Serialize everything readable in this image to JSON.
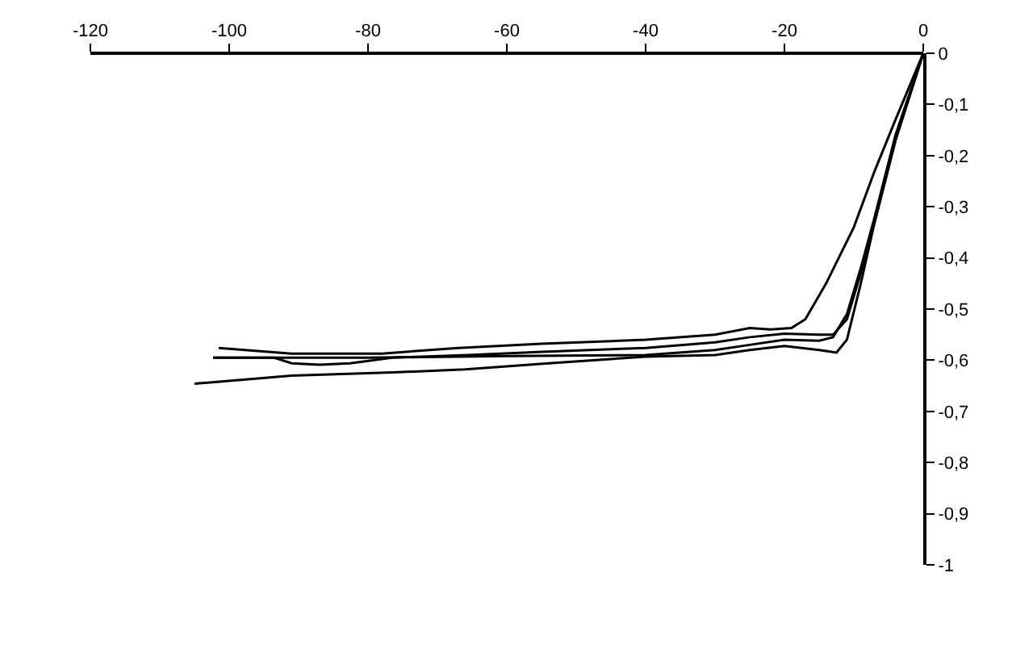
{
  "chart_data": {
    "type": "line",
    "xlim": [
      -120,
      0
    ],
    "ylim": [
      -1,
      0
    ],
    "xticks": [
      -120,
      -100,
      -80,
      -60,
      -40,
      -20,
      0
    ],
    "yticks": [
      0,
      {
        "value": -0.1,
        "label": "-0,1"
      },
      {
        "value": -0.2,
        "label": "-0,2"
      },
      {
        "value": -0.3,
        "label": "-0,3"
      },
      {
        "value": -0.4,
        "label": "-0,4"
      },
      {
        "value": -0.5,
        "label": "-0,5"
      },
      {
        "value": -0.6,
        "label": "-0,6"
      },
      {
        "value": -0.7,
        "label": "-0,7"
      },
      {
        "value": -0.8,
        "label": "-0,8"
      },
      {
        "value": -0.9,
        "label": "-0,9"
      },
      -1
    ],
    "marker": "none",
    "line_style": "solid",
    "series": [
      {
        "color": "#000000",
        "x": [
          -101.5,
          -91,
          -78,
          -67,
          -55,
          -40,
          -30,
          -25,
          -22,
          -19,
          -17,
          -14,
          -10,
          -7,
          -4,
          0
        ],
        "values": [
          -0.576,
          -0.587,
          -0.587,
          -0.576,
          -0.568,
          -0.56,
          -0.55,
          -0.537,
          -0.54,
          -0.537,
          -0.52,
          -0.45,
          -0.34,
          -0.23,
          -0.13,
          0
        ]
      },
      {
        "color": "#000000",
        "x": [
          -102.3,
          -93.5,
          -91,
          -87,
          -82.6,
          -76.5,
          -65.6,
          -55.6,
          -40,
          -30,
          -25,
          -20,
          -15,
          -13,
          -11,
          -9,
          -7,
          -4,
          0
        ],
        "values": [
          -0.595,
          -0.595,
          -0.606,
          -0.609,
          -0.606,
          -0.595,
          -0.59,
          -0.584,
          -0.576,
          -0.565,
          -0.555,
          -0.548,
          -0.55,
          -0.55,
          -0.52,
          -0.43,
          -0.33,
          -0.17,
          0
        ]
      },
      {
        "color": "#000000",
        "x": [
          -102.3,
          -80,
          -60,
          -40,
          -30,
          -25,
          -20,
          -15,
          -13,
          -11,
          -9,
          -7,
          -4,
          0
        ],
        "values": [
          -0.595,
          -0.595,
          -0.592,
          -0.59,
          -0.58,
          -0.57,
          -0.56,
          -0.562,
          -0.555,
          -0.51,
          -0.42,
          -0.32,
          -0.16,
          0
        ]
      },
      {
        "color": "#000000",
        "x": [
          -105,
          -91,
          -76.5,
          -66,
          -54,
          -40,
          -30,
          -25,
          -20,
          -15,
          -12.5,
          -11,
          -9,
          -7,
          -4,
          0
        ],
        "values": [
          -0.646,
          -0.63,
          -0.624,
          -0.618,
          -0.606,
          -0.593,
          -0.59,
          -0.58,
          -0.572,
          -0.58,
          -0.585,
          -0.56,
          -0.45,
          -0.33,
          -0.17,
          0
        ]
      }
    ]
  }
}
